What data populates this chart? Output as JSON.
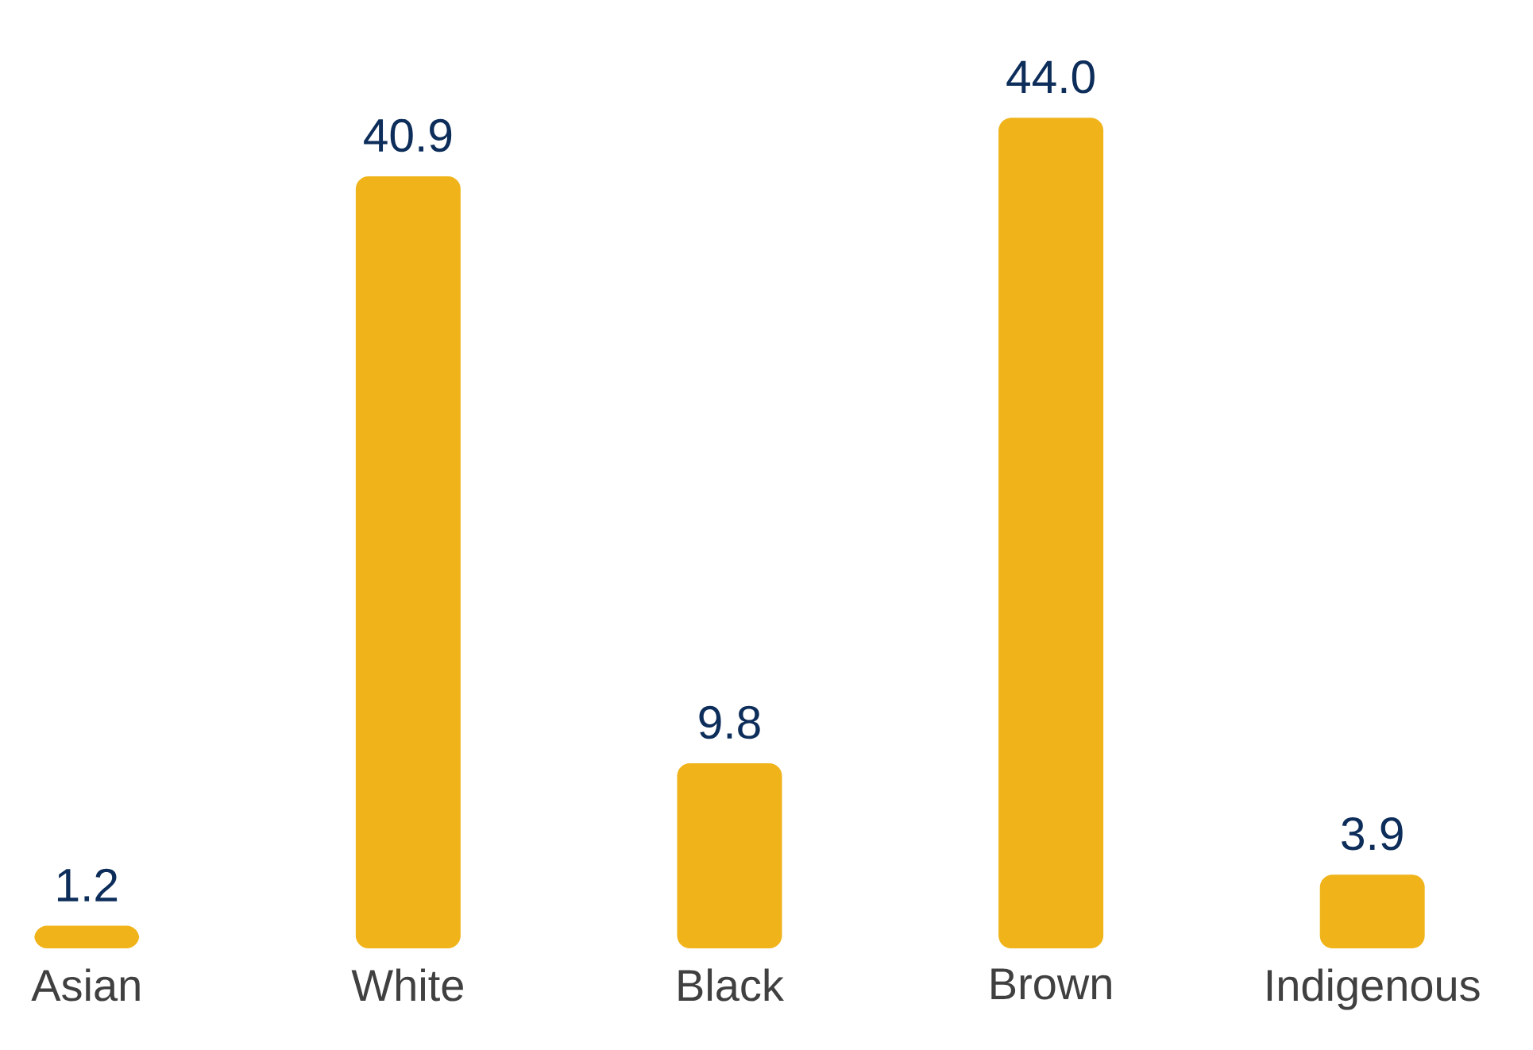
{
  "chart_data": {
    "type": "bar",
    "categories": [
      "Asian",
      "White",
      "Black",
      "Brown",
      "Indigenous"
    ],
    "values": [
      1.2,
      40.9,
      9.8,
      44.0,
      3.9
    ],
    "value_labels": [
      "1.2",
      "40.9",
      "9.8",
      "44.0",
      "3.9"
    ],
    "color": "#f0b41a"
  }
}
